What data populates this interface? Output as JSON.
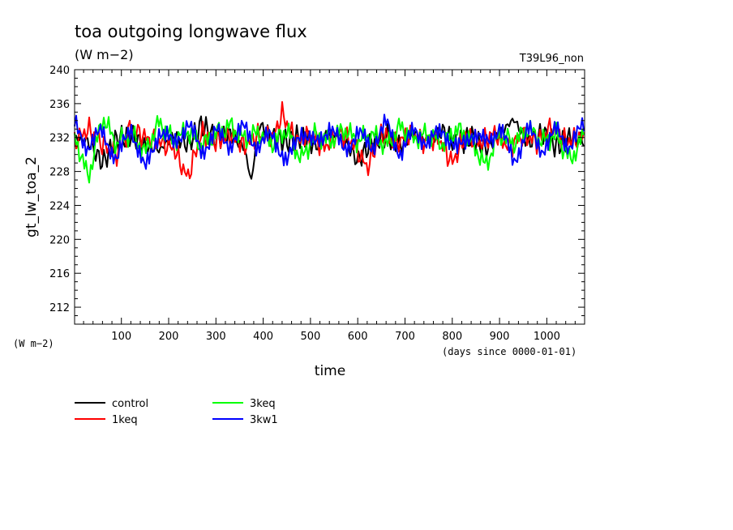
{
  "chart_data": {
    "type": "line",
    "title": "toa outgoing longwave flux",
    "subtitle": "(W m−2)",
    "top_right_label": "T39L96_non",
    "ylabel": "gt_lw_toa_2",
    "yunits": "(W m−2)",
    "xlabel": "time",
    "xunits": "(days since 0000-01-01)",
    "xlim": [
      1,
      1080
    ],
    "ylim": [
      210,
      240
    ],
    "xticks": [
      100,
      200,
      300,
      400,
      500,
      600,
      700,
      800,
      900,
      1000
    ],
    "xtick_labels": [
      "100",
      "200",
      "300",
      "400",
      "500",
      "600",
      "700",
      "800",
      "900",
      "1000"
    ],
    "yticks": [
      212,
      216,
      220,
      224,
      228,
      232,
      236,
      240
    ],
    "ytick_labels": [
      "212",
      "216",
      "220",
      "224",
      "228",
      "232",
      "236",
      "240"
    ],
    "grid": false,
    "legend_position": "below",
    "series": [
      {
        "name": "control",
        "color": "#000000",
        "x": [
          1,
          30,
          60,
          90,
          120,
          150,
          180,
          210,
          240,
          270,
          300,
          330,
          360,
          375,
          390,
          420,
          450,
          480,
          510,
          540,
          570,
          600,
          630,
          660,
          690,
          720,
          750,
          780,
          810,
          840,
          870,
          900,
          930,
          960,
          990,
          1020,
          1050,
          1080
        ],
        "values": [
          232.0,
          231.5,
          229.0,
          231.8,
          232.3,
          231.0,
          230.5,
          232.2,
          231.2,
          233.5,
          231.8,
          232.4,
          230.8,
          226.8,
          233.6,
          232.0,
          231.5,
          232.2,
          231.0,
          232.6,
          231.8,
          229.2,
          231.5,
          232.3,
          231.0,
          232.5,
          231.6,
          232.8,
          231.2,
          232.1,
          230.6,
          232.4,
          234.2,
          231.3,
          232.5,
          231.0,
          232.0,
          231.6
        ]
      },
      {
        "name": "1keq",
        "color": "#ff0000",
        "x": [
          1,
          30,
          60,
          90,
          120,
          150,
          180,
          210,
          240,
          270,
          300,
          330,
          360,
          390,
          420,
          440,
          470,
          500,
          530,
          560,
          590,
          620,
          650,
          680,
          710,
          740,
          770,
          800,
          830,
          860,
          890,
          920,
          950,
          980,
          1010,
          1040,
          1080
        ],
        "values": [
          231.5,
          233.0,
          231.2,
          230.0,
          233.2,
          232.0,
          231.4,
          230.8,
          227.2,
          232.6,
          231.5,
          232.3,
          231.0,
          232.4,
          231.8,
          234.8,
          231.5,
          232.2,
          230.9,
          232.6,
          231.4,
          228.4,
          232.5,
          231.2,
          232.6,
          231.5,
          232.0,
          229.0,
          232.4,
          231.3,
          232.6,
          230.8,
          232.3,
          231.5,
          233.2,
          231.6,
          232.0
        ]
      },
      {
        "name": "3keq",
        "color": "#00ff00",
        "x": [
          1,
          30,
          60,
          90,
          120,
          150,
          180,
          210,
          240,
          270,
          300,
          330,
          360,
          390,
          420,
          450,
          480,
          510,
          540,
          570,
          600,
          630,
          660,
          690,
          720,
          750,
          780,
          810,
          840,
          870,
          900,
          930,
          960,
          990,
          1020,
          1050,
          1080
        ],
        "values": [
          232.3,
          227.2,
          234.4,
          231.2,
          232.6,
          230.2,
          233.8,
          231.6,
          232.8,
          231.0,
          232.5,
          233.4,
          231.8,
          232.6,
          231.3,
          232.9,
          229.4,
          232.4,
          231.5,
          233.0,
          231.6,
          232.4,
          231.0,
          233.3,
          231.9,
          232.5,
          231.2,
          233.0,
          231.7,
          228.6,
          232.5,
          231.3,
          233.1,
          231.5,
          232.3,
          229.3,
          232.4
        ]
      },
      {
        "name": "3kw1",
        "color": "#0000ff",
        "x": [
          1,
          30,
          60,
          90,
          120,
          150,
          180,
          210,
          240,
          270,
          300,
          330,
          360,
          390,
          420,
          450,
          480,
          510,
          540,
          570,
          600,
          630,
          660,
          690,
          720,
          750,
          780,
          810,
          840,
          870,
          900,
          930,
          960,
          990,
          1020,
          1050,
          1080
        ],
        "values": [
          233.6,
          230.8,
          232.8,
          229.2,
          233.4,
          228.0,
          232.9,
          231.2,
          233.6,
          230.4,
          232.6,
          231.2,
          233.2,
          230.8,
          232.5,
          228.8,
          233.0,
          231.0,
          233.3,
          230.6,
          232.4,
          231.0,
          233.6,
          230.2,
          232.8,
          231.3,
          233.0,
          230.4,
          232.6,
          231.3,
          233.2,
          229.2,
          232.9,
          230.6,
          232.8,
          231.0,
          233.6
        ]
      }
    ]
  }
}
